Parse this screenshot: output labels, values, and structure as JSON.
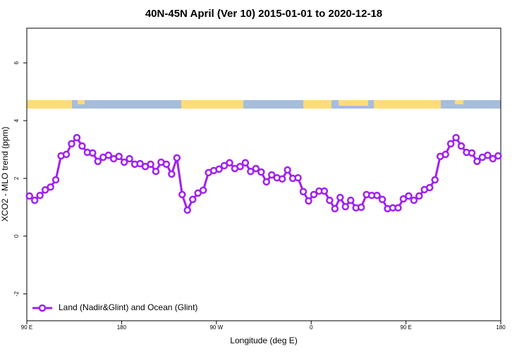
{
  "chart_data": {
    "type": "line",
    "title": "40N-45N April (Ver 10)   2015-01-01 to 2020-12-18",
    "x_label": "Longitude (deg E)",
    "y_label": "XCO2 - MLO trend (ppm)",
    "xlim": [
      90,
      540
    ],
    "ylim": [
      -2.93,
      7.2
    ],
    "xticks": [
      {
        "value": 90,
        "label": "90 E"
      },
      180,
      {
        "value": 270,
        "label": "90 W"
      },
      {
        "value": 360,
        "label": "0"
      },
      {
        "value": 450,
        "label": "90 E"
      },
      {
        "value": 540,
        "label": "180"
      }
    ],
    "yticks": [
      -2,
      0,
      2,
      4,
      6
    ],
    "legend": "bottom-left",
    "x": [
      92.5,
      97.5,
      102.5,
      107.5,
      112.5,
      117.5,
      122.5,
      127.5,
      132.5,
      137.5,
      142.5,
      147.5,
      152.5,
      157.5,
      162.5,
      167.5,
      172.5,
      177.5,
      182.5,
      187.5,
      192.5,
      197.5,
      202.5,
      207.5,
      212.5,
      217.5,
      222.5,
      227.5,
      232.5,
      237.5,
      242.5,
      247.5,
      252.5,
      257.5,
      262.5,
      267.5,
      272.5,
      277.5,
      282.5,
      287.5,
      292.5,
      297.5,
      302.5,
      307.5,
      312.5,
      317.5,
      322.5,
      327.5,
      332.5,
      337.5,
      342.5,
      347.5,
      352.5,
      357.5,
      362.5,
      367.5,
      372.5,
      377.5,
      382.5,
      387.5,
      392.5,
      397.5,
      402.5,
      407.5,
      412.5,
      417.5,
      422.5,
      427.5,
      432.5,
      437.5,
      442.5,
      447.5,
      452.5,
      457.5,
      462.5,
      467.5,
      472.5,
      477.5,
      482.5,
      487.5,
      492.5,
      497.5,
      502.5,
      507.5,
      512.5,
      517.5,
      522.5,
      527.5,
      532.5,
      537.5
    ],
    "series": [
      {
        "name": "Land (Nadir&Glint) and Ocean (Glint)",
        "color": "#a020f0",
        "values": [
          1.39,
          1.24,
          1.41,
          1.6,
          1.7,
          1.95,
          2.78,
          2.83,
          3.2,
          3.41,
          3.12,
          2.9,
          2.88,
          2.59,
          2.73,
          2.8,
          2.68,
          2.76,
          2.56,
          2.68,
          2.49,
          2.51,
          2.41,
          2.49,
          2.24,
          2.56,
          2.49,
          2.15,
          2.71,
          1.44,
          0.9,
          1.27,
          1.49,
          1.59,
          2.2,
          2.27,
          2.32,
          2.44,
          2.54,
          2.34,
          2.41,
          2.54,
          2.24,
          2.34,
          2.22,
          1.88,
          2.12,
          2.02,
          1.98,
          2.29,
          2.0,
          2.02,
          1.54,
          1.22,
          1.44,
          1.56,
          1.56,
          1.24,
          0.95,
          1.34,
          1.02,
          1.24,
          0.98,
          1.0,
          1.44,
          1.41,
          1.41,
          1.27,
          0.95,
          0.98,
          0.98,
          1.29,
          1.39,
          1.24,
          1.39,
          1.61,
          1.68,
          1.95,
          2.76,
          2.83,
          3.2,
          3.41,
          3.12,
          2.9,
          2.88,
          2.59,
          2.73,
          2.8,
          2.68,
          2.78
        ]
      }
    ]
  }
}
